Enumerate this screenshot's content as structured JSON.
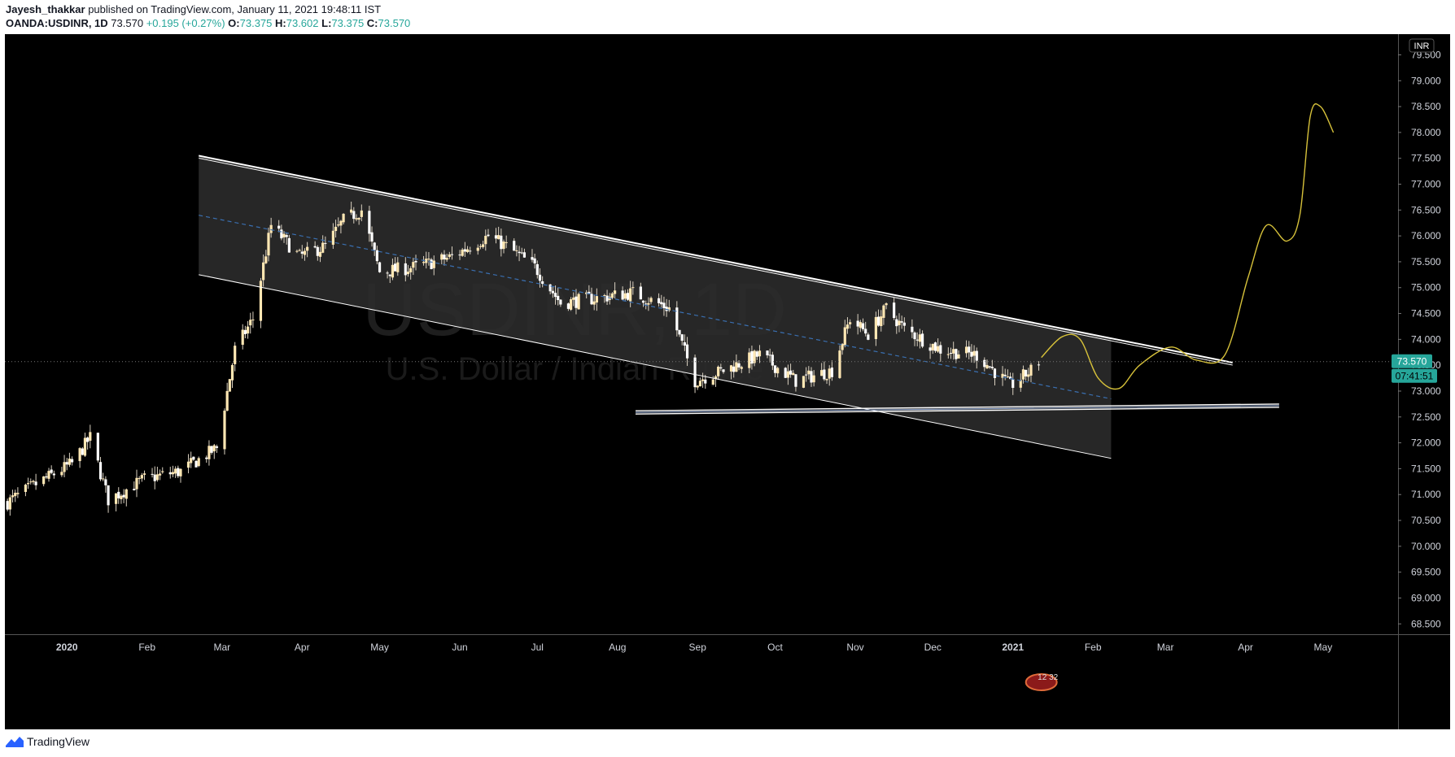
{
  "header": {
    "author": "Jayesh_thakkar",
    "published": "published on TradingView.com, January 11, 2021 19:48:11 IST",
    "symbol": "OANDA:USDINR, 1D",
    "last": "73.570",
    "change": "+0.195 (+0.27%)",
    "o_label": "O:",
    "o": "73.375",
    "h_label": "H:",
    "h": "73.602",
    "l_label": "L:",
    "l": "73.375",
    "c_label": "C:",
    "c": "73.570"
  },
  "watermark": {
    "ticker": "USDINR, 1D",
    "name": "U.S. Dollar / Indian Rupee"
  },
  "price_scale": {
    "currency": "INR",
    "last_price_label": "73.570",
    "countdown": "07:41:51",
    "last_price_color": "#26a69a"
  },
  "flag_badge": "12 32",
  "footer": {
    "brand": "TradingView"
  },
  "colors": {
    "background": "#000000",
    "candle": "#ffe7b3",
    "channel_fill": "#2b2b2b",
    "projection": "#d6c13a",
    "midline": "#3a6fb0"
  },
  "chart_data": {
    "type": "candlestick",
    "title": "OANDA:USDINR, 1D",
    "xlabel": "",
    "ylabel": "",
    "ylim": [
      68.3,
      79.9
    ],
    "xlim": [
      "2019-12-08",
      "2021-05-30"
    ],
    "yticks": [
      "68.500",
      "69.000",
      "69.500",
      "70.000",
      "70.500",
      "71.000",
      "71.500",
      "72.000",
      "72.500",
      "73.000",
      "73.500",
      "74.000",
      "74.500",
      "75.000",
      "75.500",
      "76.000",
      "76.500",
      "77.000",
      "77.500",
      "78.000",
      "78.500",
      "79.000",
      "79.500"
    ],
    "xticks": [
      {
        "label": "2020",
        "date": "2020-01-01"
      },
      {
        "label": "Feb",
        "date": "2020-02-01"
      },
      {
        "label": "Mar",
        "date": "2020-03-01"
      },
      {
        "label": "Apr",
        "date": "2020-04-01"
      },
      {
        "label": "May",
        "date": "2020-05-01"
      },
      {
        "label": "Jun",
        "date": "2020-06-01"
      },
      {
        "label": "Jul",
        "date": "2020-07-01"
      },
      {
        "label": "Aug",
        "date": "2020-08-01"
      },
      {
        "label": "Sep",
        "date": "2020-09-01"
      },
      {
        "label": "Oct",
        "date": "2020-10-01"
      },
      {
        "label": "Nov",
        "date": "2020-11-01"
      },
      {
        "label": "Dec",
        "date": "2020-12-01"
      },
      {
        "label": "2021",
        "date": "2021-01-01"
      },
      {
        "label": "Feb",
        "date": "2021-02-01"
      },
      {
        "label": "Mar",
        "date": "2021-03-01"
      },
      {
        "label": "Apr",
        "date": "2021-04-01"
      },
      {
        "label": "May",
        "date": "2021-05-01"
      }
    ],
    "close_path": [
      [
        "2019-12-09",
        70.85
      ],
      [
        "2019-12-20",
        71.2
      ],
      [
        "2020-01-03",
        71.6
      ],
      [
        "2020-01-10",
        72.1
      ],
      [
        "2020-01-17",
        70.9
      ],
      [
        "2020-01-31",
        71.3
      ],
      [
        "2020-02-14",
        71.45
      ],
      [
        "2020-02-28",
        71.9
      ],
      [
        "2020-03-06",
        73.8
      ],
      [
        "2020-03-13",
        74.4
      ],
      [
        "2020-03-20",
        76.2
      ],
      [
        "2020-03-31",
        75.6
      ],
      [
        "2020-04-10",
        75.8
      ],
      [
        "2020-04-17",
        76.3
      ],
      [
        "2020-04-24",
        76.5
      ],
      [
        "2020-05-01",
        75.3
      ],
      [
        "2020-05-15",
        75.4
      ],
      [
        "2020-05-29",
        75.6
      ],
      [
        "2020-06-12",
        76.0
      ],
      [
        "2020-06-19",
        75.8
      ],
      [
        "2020-06-30",
        75.4
      ],
      [
        "2020-07-10",
        74.7
      ],
      [
        "2020-07-24",
        74.8
      ],
      [
        "2020-08-07",
        74.9
      ],
      [
        "2020-08-21",
        74.6
      ],
      [
        "2020-08-31",
        73.2
      ],
      [
        "2020-09-11",
        73.4
      ],
      [
        "2020-09-25",
        73.7
      ],
      [
        "2020-10-09",
        73.2
      ],
      [
        "2020-10-23",
        73.4
      ],
      [
        "2020-10-30",
        74.4
      ],
      [
        "2020-11-06",
        74.1
      ],
      [
        "2020-11-13",
        74.6
      ],
      [
        "2020-11-20",
        74.2
      ],
      [
        "2020-12-04",
        73.8
      ],
      [
        "2020-12-18",
        73.7
      ],
      [
        "2020-12-31",
        73.1
      ],
      [
        "2021-01-08",
        73.4
      ],
      [
        "2021-01-11",
        73.57
      ]
    ],
    "channel": {
      "upper": [
        [
          "2020-02-21",
          77.55
        ],
        [
          "2021-03-27",
          73.55
        ]
      ],
      "lower": [
        [
          "2020-02-21",
          75.25
        ],
        [
          "2021-02-08",
          71.7
        ]
      ],
      "mid": [
        [
          "2020-02-21",
          76.4
        ],
        [
          "2021-02-08",
          72.85
        ]
      ],
      "box_end": "2021-02-08"
    },
    "support": {
      "start": "2020-08-08",
      "end": "2021-04-14",
      "from": 72.62,
      "to": 72.75
    },
    "last_price": 73.57,
    "projection": [
      [
        "2021-01-12",
        73.65
      ],
      [
        "2021-01-20",
        74.05
      ],
      [
        "2021-01-27",
        74.0
      ],
      [
        "2021-02-03",
        73.25
      ],
      [
        "2021-02-11",
        73.05
      ],
      [
        "2021-02-19",
        73.5
      ],
      [
        "2021-03-03",
        73.85
      ],
      [
        "2021-03-13",
        73.6
      ],
      [
        "2021-03-24",
        73.7
      ],
      [
        "2021-04-02",
        75.2
      ],
      [
        "2021-04-09",
        76.2
      ],
      [
        "2021-04-17",
        75.9
      ],
      [
        "2021-04-22",
        76.4
      ],
      [
        "2021-04-26",
        78.3
      ],
      [
        "2021-04-30",
        78.5
      ],
      [
        "2021-05-05",
        78.0
      ]
    ]
  }
}
